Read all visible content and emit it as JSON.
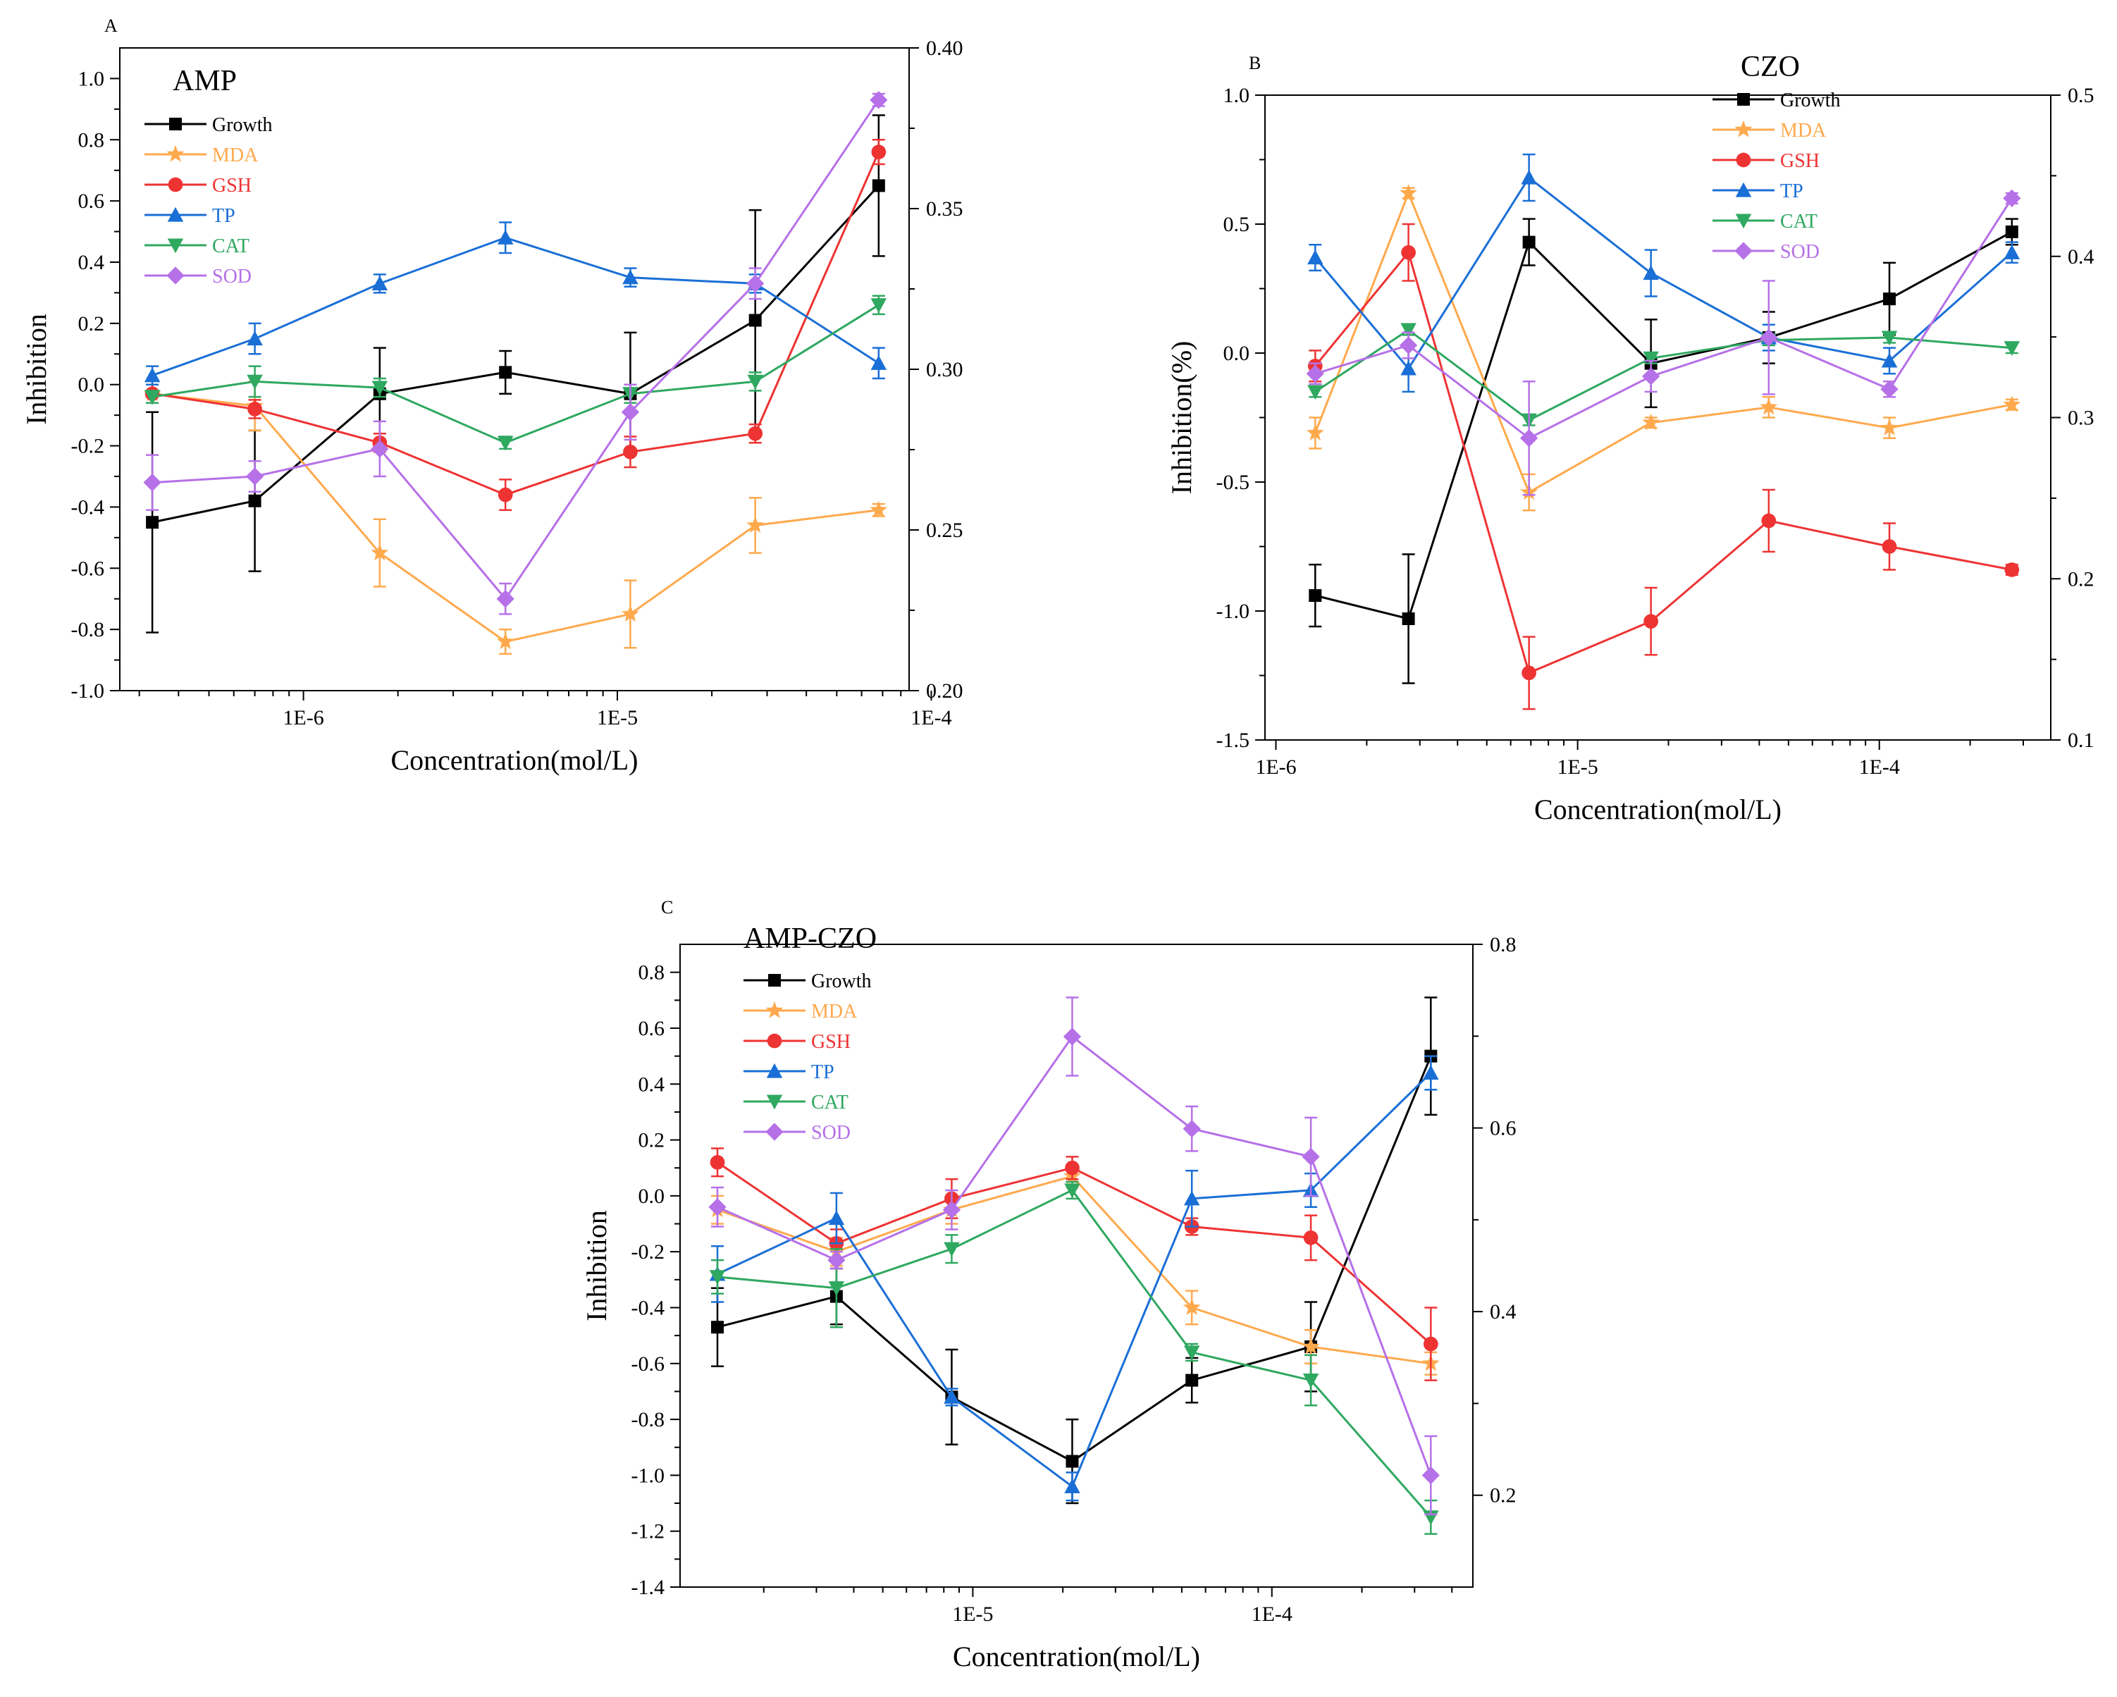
{
  "chart_data": [
    {
      "panel": "A",
      "type": "line",
      "title": "AMP",
      "xlabel": "Concentration(mol/L)",
      "ylabel": "Inhibition",
      "xscale": "log",
      "x_tick_labels": [
        "1E-6",
        "1E-5",
        "1E-4"
      ],
      "y_tick_labels": [
        "1.0",
        "0.8",
        "0.6",
        "0.4",
        "0.2",
        "0.0",
        "-0.2",
        "-0.4",
        "-0.6",
        "-0.8",
        "-1.0"
      ],
      "y_right_tick_labels": [
        "0.40",
        "0.35",
        "0.30",
        "0.25",
        "0.20"
      ],
      "x": [
        3.3e-07,
        7e-07,
        1.75e-06,
        4.4e-06,
        1.1e-05,
        2.75e-05,
        6.8e-05
      ],
      "xlim": [
        2.6e-07,
        8.5e-05
      ],
      "ylim": [
        -1.0,
        1.1
      ],
      "y_right_lim": [
        0.2,
        0.4
      ],
      "series": [
        {
          "name": "Growth",
          "color": "#000000",
          "marker": "square",
          "values": [
            -0.45,
            -0.38,
            -0.03,
            0.04,
            -0.03,
            0.21,
            0.65
          ],
          "errors": [
            0.36,
            0.23,
            0.15,
            0.07,
            0.2,
            0.36,
            0.23
          ]
        },
        {
          "name": "MDA",
          "color": "#FFA94D",
          "marker": "star",
          "values": [
            -0.03,
            -0.07,
            -0.55,
            -0.84,
            -0.75,
            -0.46,
            -0.41
          ],
          "errors": [
            0.03,
            0.08,
            0.11,
            0.04,
            0.11,
            0.09,
            0.02
          ]
        },
        {
          "name": "GSH",
          "color": "#EE3333",
          "marker": "circle",
          "values": [
            -0.03,
            -0.08,
            -0.19,
            -0.36,
            -0.22,
            -0.16,
            0.76
          ],
          "errors": [
            0.03,
            0.03,
            0.03,
            0.05,
            0.05,
            0.03,
            0.04
          ]
        },
        {
          "name": "TP",
          "color": "#1A6FD6",
          "marker": "triangle-up",
          "values": [
            0.03,
            0.15,
            0.33,
            0.48,
            0.35,
            0.33,
            0.07
          ],
          "errors": [
            0.03,
            0.05,
            0.03,
            0.05,
            0.03,
            0.03,
            0.05
          ]
        },
        {
          "name": "CAT",
          "color": "#2FA860",
          "marker": "triangle-down",
          "values": [
            -0.04,
            0.01,
            -0.01,
            -0.19,
            -0.03,
            0.01,
            0.26
          ],
          "errors": [
            0.02,
            0.05,
            0.03,
            0.02,
            0.03,
            0.03,
            0.03
          ]
        },
        {
          "name": "SOD",
          "color": "#B670E8",
          "marker": "diamond",
          "values": [
            -0.32,
            -0.3,
            -0.21,
            -0.7,
            -0.09,
            0.33,
            0.93
          ],
          "errors": [
            0.09,
            0.05,
            0.09,
            0.05,
            0.09,
            0.05,
            0.02
          ]
        }
      ]
    },
    {
      "panel": "B",
      "type": "line",
      "title": "CZO",
      "xlabel": "Concentration(mol/L)",
      "ylabel": "Inhibition(%)",
      "xscale": "log",
      "x_tick_labels": [
        "1E-6",
        "1E-5",
        "1E-4"
      ],
      "y_tick_labels": [
        "1.0",
        "0.5",
        "0.0",
        "-0.5",
        "-1.0",
        "-1.5"
      ],
      "y_right_tick_labels": [
        "0.5",
        "0.4",
        "0.3",
        "0.2",
        "0.1"
      ],
      "x": [
        1.35e-06,
        2.75e-06,
        6.9e-06,
        1.75e-05,
        4.3e-05,
        0.000108,
        0.000275
      ],
      "xlim": [
        9.2e-07,
        0.00037
      ],
      "ylim": [
        -1.5,
        1.0
      ],
      "y_right_lim": [
        0.1,
        0.5
      ],
      "series": [
        {
          "name": "Growth",
          "color": "#000000",
          "marker": "square",
          "values": [
            -0.94,
            -1.03,
            0.43,
            -0.04,
            0.06,
            0.21,
            0.47
          ],
          "errors": [
            0.12,
            0.25,
            0.09,
            0.17,
            0.1,
            0.14,
            0.05
          ]
        },
        {
          "name": "MDA",
          "color": "#FFA94D",
          "marker": "star",
          "values": [
            -0.31,
            0.62,
            -0.54,
            -0.27,
            -0.21,
            -0.29,
            -0.2
          ],
          "errors": [
            0.06,
            0.02,
            0.07,
            0.02,
            0.04,
            0.04,
            0.02
          ]
        },
        {
          "name": "GSH",
          "color": "#EE3333",
          "marker": "circle",
          "values": [
            -0.05,
            0.39,
            -1.24,
            -1.04,
            -0.65,
            -0.75,
            -0.84
          ],
          "errors": [
            0.06,
            0.11,
            0.14,
            0.13,
            0.12,
            0.09,
            0.02
          ]
        },
        {
          "name": "TP",
          "color": "#1A6FD6",
          "marker": "triangle-up",
          "values": [
            0.37,
            -0.06,
            0.68,
            0.31,
            0.06,
            -0.03,
            0.39
          ],
          "errors": [
            0.05,
            0.09,
            0.09,
            0.09,
            0.05,
            0.05,
            0.04
          ]
        },
        {
          "name": "CAT",
          "color": "#2FA860",
          "marker": "triangle-down",
          "values": [
            -0.15,
            0.09,
            -0.26,
            -0.02,
            0.05,
            0.06,
            0.02
          ],
          "errors": [
            0.02,
            0.02,
            0.02,
            0.02,
            0.02,
            0.02,
            0.02
          ]
        },
        {
          "name": "SOD",
          "color": "#B670E8",
          "marker": "diamond",
          "values": [
            -0.08,
            0.03,
            -0.33,
            -0.09,
            0.06,
            -0.14,
            0.6
          ],
          "errors": [
            0.04,
            0.05,
            0.22,
            0.06,
            0.22,
            0.03,
            0.02
          ]
        }
      ]
    },
    {
      "panel": "C",
      "type": "line",
      "title": "AMP-CZO",
      "xlabel": "Concentration(mol/L)",
      "ylabel": "Inhibition",
      "xscale": "log",
      "x_tick_labels": [
        "1E-5",
        "1E-4"
      ],
      "y_tick_labels": [
        "0.8",
        "0.6",
        "0.4",
        "0.2",
        "0.0",
        "-0.2",
        "-0.4",
        "-0.6",
        "-0.8",
        "-1.0",
        "-1.2",
        "-1.4"
      ],
      "y_right_tick_labels": [
        "0.8",
        "0.6",
        "0.4",
        "0.2"
      ],
      "x": [
        1.4e-06,
        3.5e-06,
        8.5e-06,
        2.15e-05,
        5.4e-05,
        0.000135,
        0.00034
      ],
      "xlim": [
        1.05e-06,
        0.00047
      ],
      "ylim": [
        -1.4,
        0.9
      ],
      "y_right_lim": [
        0.1,
        0.8
      ],
      "series": [
        {
          "name": "Growth",
          "color": "#000000",
          "marker": "square",
          "values": [
            -0.47,
            -0.36,
            -0.72,
            -0.95,
            -0.66,
            -0.54,
            0.5
          ],
          "errors": [
            0.14,
            0.1,
            0.17,
            0.15,
            0.08,
            0.16,
            0.21
          ]
        },
        {
          "name": "MDA",
          "color": "#FFA94D",
          "marker": "star",
          "values": [
            -0.05,
            -0.2,
            -0.05,
            0.07,
            -0.4,
            -0.54,
            -0.6
          ],
          "errors": [
            0.05,
            0.05,
            0.05,
            0.04,
            0.06,
            0.06,
            0.04
          ]
        },
        {
          "name": "GSH",
          "color": "#EE3333",
          "marker": "circle",
          "values": [
            0.12,
            -0.17,
            -0.01,
            0.1,
            -0.11,
            -0.15,
            -0.53
          ],
          "errors": [
            0.05,
            0.05,
            0.07,
            0.04,
            0.03,
            0.08,
            0.13
          ]
        },
        {
          "name": "TP",
          "color": "#1A6FD6",
          "marker": "triangle-up",
          "values": [
            -0.28,
            -0.08,
            -0.72,
            -1.04,
            -0.01,
            0.02,
            0.44
          ],
          "errors": [
            0.1,
            0.09,
            0.03,
            0.05,
            0.1,
            0.06,
            0.06
          ]
        },
        {
          "name": "CAT",
          "color": "#2FA860",
          "marker": "triangle-down",
          "values": [
            -0.29,
            -0.33,
            -0.19,
            0.02,
            -0.56,
            -0.66,
            -1.15
          ],
          "errors": [
            0.06,
            0.14,
            0.05,
            0.03,
            0.03,
            0.09,
            0.06
          ]
        },
        {
          "name": "SOD",
          "color": "#B670E8",
          "marker": "diamond",
          "values": [
            -0.04,
            -0.23,
            -0.05,
            0.57,
            0.24,
            0.14,
            -1.0
          ],
          "errors": [
            0.07,
            0.03,
            0.07,
            0.14,
            0.08,
            0.14,
            0.14
          ]
        }
      ]
    }
  ]
}
